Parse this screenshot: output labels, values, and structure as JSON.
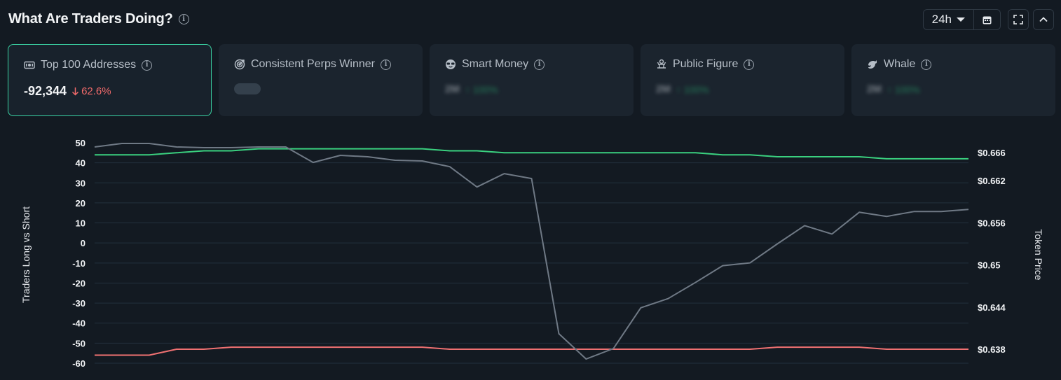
{
  "header": {
    "title": "What Are Traders Doing?",
    "timeframe": "24h"
  },
  "cards": [
    {
      "label": "Top 100 Addresses",
      "value": "-92,344",
      "change": "62.6%",
      "direction": "down",
      "icon": "banknote-icon",
      "active": true
    },
    {
      "label": "Consistent Perps Winner",
      "value": "",
      "change": "",
      "icon": "target-icon",
      "active": false
    },
    {
      "label": "Smart Money",
      "value": "2M",
      "change": "100%",
      "direction": "up",
      "blurred": true,
      "icon": "sunglasses-icon"
    },
    {
      "label": "Public Figure",
      "value": "2M",
      "change": "100%",
      "direction": "up",
      "blurred": true,
      "icon": "podium-icon"
    },
    {
      "label": "Whale",
      "value": "2M",
      "change": "100%",
      "direction": "up",
      "blurred": true,
      "icon": "whale-icon"
    }
  ],
  "chart_data": {
    "type": "line",
    "ylabel": "Traders Long vs Short",
    "y2label": "Token Price",
    "y_ticks": [
      "50",
      "40",
      "30",
      "20",
      "10",
      "0",
      "-10",
      "-20",
      "-30",
      "-40",
      "-50",
      "-60"
    ],
    "y2_ticks": [
      "$0.666",
      "$0.662",
      "$0.656",
      "$0.65",
      "$0.644",
      "$0.638"
    ],
    "ylim": [
      -60,
      50
    ],
    "y2lim": [
      0.638,
      0.666
    ],
    "series": [
      {
        "color": "#3ad07f",
        "axis": "left",
        "values": [
          44,
          44,
          44,
          45,
          46,
          46,
          47,
          47,
          47,
          47,
          47,
          47,
          47,
          46,
          46,
          45,
          45,
          45,
          45,
          45,
          45,
          45,
          45,
          44,
          44,
          43,
          43,
          43,
          43,
          42,
          42,
          42,
          42
        ]
      },
      {
        "color": "#f07172",
        "axis": "left",
        "values": [
          -56,
          -56,
          -56,
          -53,
          -53,
          -52,
          -52,
          -52,
          -52,
          -52,
          -52,
          -52,
          -52,
          -53,
          -53,
          -53,
          -53,
          -53,
          -53,
          -53,
          -53,
          -53,
          -53,
          -53,
          -53,
          -52,
          -52,
          -52,
          -52,
          -53,
          -53,
          -53,
          -53
        ]
      },
      {
        "color": "#6f7985",
        "axis": "right",
        "values": [
          0.6668,
          0.6673,
          0.6673,
          0.6668,
          0.6667,
          0.6667,
          0.6668,
          0.6668,
          0.6646,
          0.6656,
          0.6654,
          0.6649,
          0.6648,
          0.664,
          0.6611,
          0.663,
          0.6623,
          0.6402,
          0.6366,
          0.6381,
          0.6439,
          0.6452,
          0.6475,
          0.6499,
          0.6503,
          0.653,
          0.6556,
          0.6544,
          0.6575,
          0.6569,
          0.6576,
          0.6576,
          0.6579
        ]
      }
    ]
  }
}
